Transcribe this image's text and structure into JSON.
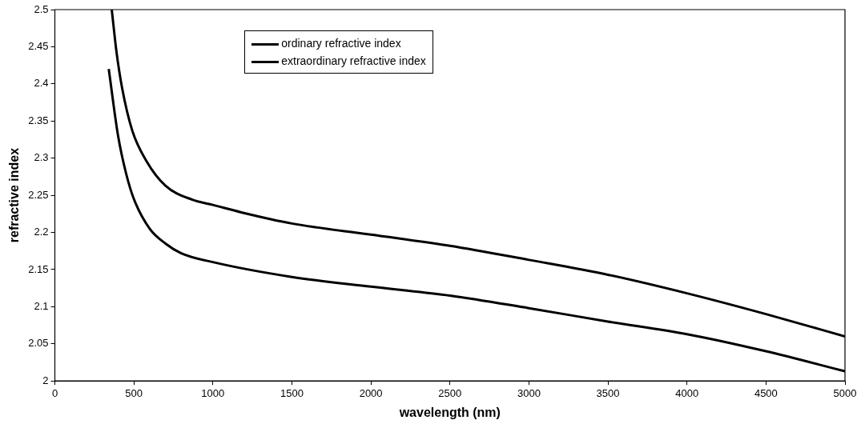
{
  "chart_data": {
    "type": "line",
    "xlabel": "wavelength (nm)",
    "ylabel": "refractive index",
    "xlim": [
      0,
      5000
    ],
    "xticks": [
      0,
      500,
      1000,
      1500,
      2000,
      2500,
      3000,
      3500,
      4000,
      4500,
      5000
    ],
    "ylim": [
      2,
      2.5
    ],
    "yticks": [
      2,
      2.05,
      2.1,
      2.15,
      2.2,
      2.25,
      2.3,
      2.35,
      2.4,
      2.45,
      2.5
    ],
    "grid": false,
    "legend": "top left",
    "marker": "none",
    "line_style": "solid",
    "series": [
      {
        "name": "ordinary refractive index",
        "color": "#000000",
        "x": [
          360,
          390,
          425,
          490,
          580,
          700,
          870,
          1000,
          1180,
          1500,
          2000,
          2500,
          3000,
          3500,
          4000,
          4500,
          5000
        ],
        "values": [
          2.5,
          2.443,
          2.395,
          2.337,
          2.296,
          2.263,
          2.244,
          2.237,
          2.227,
          2.212,
          2.197,
          2.182,
          2.163,
          2.143,
          2.118,
          2.09,
          2.06
        ]
      },
      {
        "name": "extraordinary refractive index",
        "color": "#000000",
        "x": [
          341,
          400,
          450,
          500,
          600,
          700,
          800,
          1000,
          1500,
          2000,
          2500,
          3000,
          3500,
          4000,
          4500,
          5000
        ],
        "values": [
          2.42,
          2.33,
          2.28,
          2.245,
          2.205,
          2.185,
          2.172,
          2.16,
          2.14,
          2.127,
          2.115,
          2.098,
          2.08,
          2.063,
          2.04,
          2.013
        ]
      }
    ]
  }
}
